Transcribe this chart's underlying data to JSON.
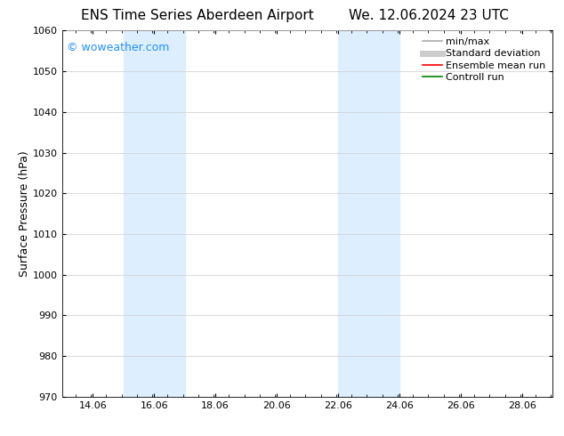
{
  "title_left": "ENS Time Series Aberdeen Airport",
  "title_right": "We. 12.06.2024 23 UTC",
  "ylabel": "Surface Pressure (hPa)",
  "ylim": [
    970,
    1060
  ],
  "yticks": [
    970,
    980,
    990,
    1000,
    1010,
    1020,
    1030,
    1040,
    1050,
    1060
  ],
  "xlim_start": 13.06,
  "xlim_end": 29.06,
  "xticks": [
    14.06,
    16.06,
    18.06,
    20.06,
    22.06,
    24.06,
    26.06,
    28.06
  ],
  "xtick_labels": [
    "14.06",
    "16.06",
    "18.06",
    "20.06",
    "22.06",
    "24.06",
    "26.06",
    "28.06"
  ],
  "shaded_bands": [
    {
      "x_start": 15.06,
      "x_end": 17.06
    },
    {
      "x_start": 22.06,
      "x_end": 24.06
    }
  ],
  "shade_color": "#ddeeff",
  "watermark_text": "© woweather.com",
  "watermark_color": "#1e90ff",
  "background_color": "#ffffff",
  "grid_color": "#cccccc",
  "legend_items": [
    {
      "label": "min/max",
      "color": "#aaaaaa",
      "lw": 1.2,
      "style": "solid"
    },
    {
      "label": "Standard deviation",
      "color": "#cccccc",
      "lw": 5,
      "style": "solid"
    },
    {
      "label": "Ensemble mean run",
      "color": "#ff0000",
      "lw": 1.2,
      "style": "solid"
    },
    {
      "label": "Controll run",
      "color": "#008000",
      "lw": 1.2,
      "style": "solid"
    }
  ],
  "title_fontsize": 11,
  "axis_label_fontsize": 9,
  "tick_fontsize": 8,
  "legend_fontsize": 8,
  "watermark_fontsize": 9
}
